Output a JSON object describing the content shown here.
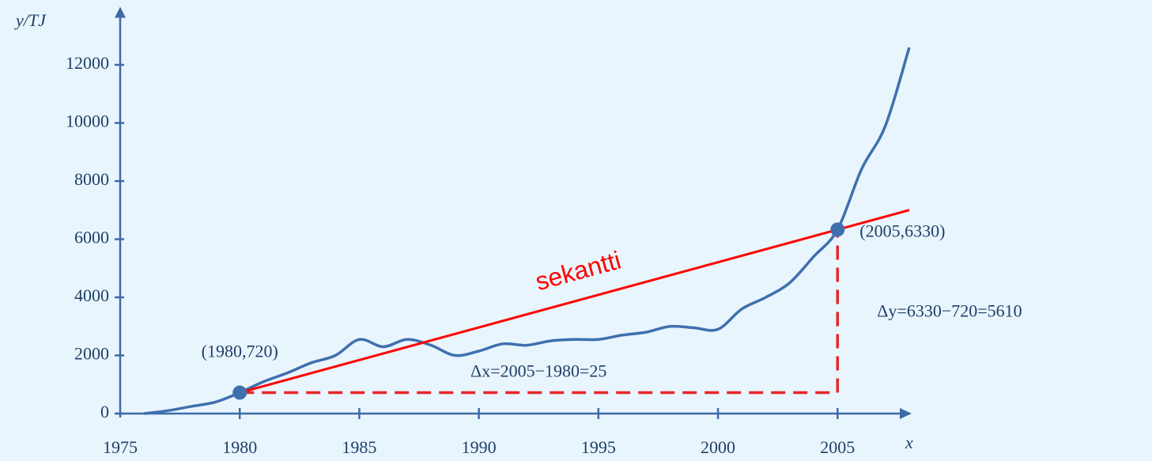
{
  "chart_data": {
    "type": "line",
    "x_label": "x",
    "y_label": "y/TJ",
    "x": [
      1976,
      1977,
      1978,
      1979,
      1980,
      1981,
      1982,
      1983,
      1984,
      1985,
      1986,
      1987,
      1988,
      1989,
      1990,
      1991,
      1992,
      1993,
      1994,
      1995,
      1996,
      1997,
      1998,
      1999,
      2000,
      2001,
      2002,
      2003,
      2004,
      2005,
      2006,
      2007,
      2008
    ],
    "values": [
      0,
      100,
      250,
      400,
      720,
      1100,
      1400,
      1750,
      2000,
      2550,
      2300,
      2550,
      2350,
      2000,
      2150,
      2400,
      2350,
      2500,
      2550,
      2550,
      2700,
      2800,
      3000,
      2950,
      2900,
      3600,
      4000,
      4500,
      5400,
      6330,
      8400,
      9900,
      12600
    ],
    "color": "#3f70ae",
    "xlim": [
      1975,
      2008
    ],
    "xticks": [
      1975,
      1980,
      1985,
      1990,
      1995,
      2000,
      2005
    ],
    "ylim": [
      0,
      14000
    ],
    "yticks": [
      0,
      2000,
      4000,
      6000,
      8000,
      10000,
      12000
    ],
    "points": [
      {
        "x": 1980,
        "y": 720,
        "label": "(1980,720)"
      },
      {
        "x": 2005,
        "y": 6330,
        "label": "(2005,6330)"
      }
    ],
    "secant": {
      "label": "sekantti",
      "color": "#ff0000"
    },
    "dx_label": "Δx=2005−1980=25",
    "dy_label": "Δy=6330−720=5610",
    "dash_color": "#e8262a"
  }
}
